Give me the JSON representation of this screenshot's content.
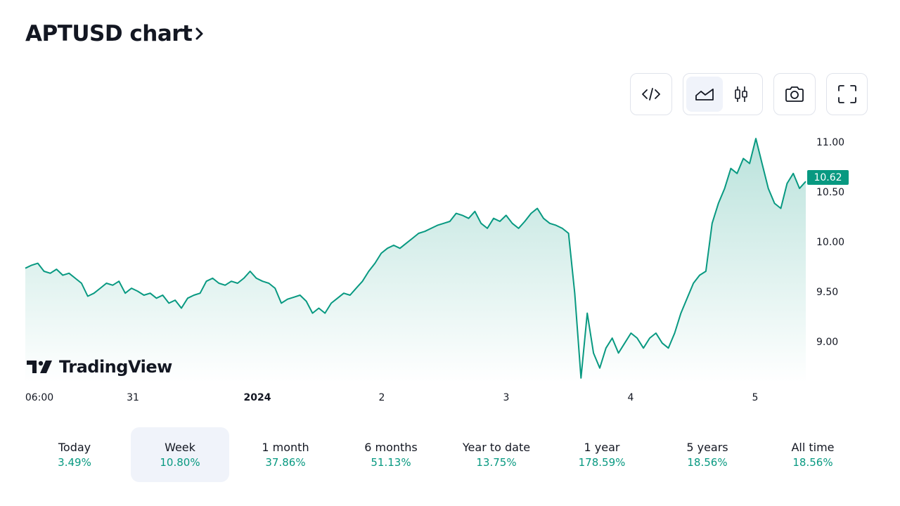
{
  "header": {
    "title": "APTUSD chart",
    "chevron_icon": "chevron-right-icon"
  },
  "toolbar": {
    "embed_icon": "code-icon",
    "area_icon": "area-chart-icon",
    "candle_icon": "candlestick-icon",
    "snapshot_icon": "camera-icon",
    "fullscreen_icon": "fullscreen-icon"
  },
  "colors": {
    "accent": "#089981",
    "fill_top": "#089981",
    "active_bg": "#f0f3fa",
    "text": "#131722"
  },
  "chart_data": {
    "type": "area",
    "title": "",
    "y_ticks": [
      "11.00",
      "10.50",
      "10.00",
      "9.50",
      "9.00"
    ],
    "x_ticks": [
      "06:00",
      "31",
      "2024",
      "2",
      "3",
      "4",
      "5"
    ],
    "ylim": [
      8.6,
      11.1
    ],
    "last_price": "10.62",
    "series": [
      {
        "values": [
          9.75,
          9.78,
          9.8,
          9.72,
          9.7,
          9.74,
          9.68,
          9.7,
          9.65,
          9.6,
          9.47,
          9.5,
          9.55,
          9.6,
          9.58,
          9.62,
          9.5,
          9.55,
          9.52,
          9.48,
          9.5,
          9.45,
          9.48,
          9.4,
          9.43,
          9.35,
          9.45,
          9.48,
          9.5,
          9.62,
          9.65,
          9.6,
          9.58,
          9.62,
          9.6,
          9.65,
          9.72,
          9.65,
          9.62,
          9.6,
          9.55,
          9.4,
          9.44,
          9.46,
          9.48,
          9.42,
          9.3,
          9.35,
          9.3,
          9.4,
          9.45,
          9.5,
          9.48,
          9.55,
          9.62,
          9.72,
          9.8,
          9.9,
          9.95,
          9.98,
          9.95,
          10.0,
          10.05,
          10.1,
          10.12,
          10.15,
          10.18,
          10.2,
          10.22,
          10.3,
          10.28,
          10.25,
          10.32,
          10.2,
          10.15,
          10.25,
          10.22,
          10.28,
          10.2,
          10.15,
          10.22,
          10.3,
          10.35,
          10.25,
          10.2,
          10.18,
          10.15,
          10.1,
          9.5,
          8.65,
          9.3,
          8.9,
          8.75,
          8.95,
          9.05,
          8.9,
          9.0,
          9.1,
          9.05,
          8.95,
          9.05,
          9.1,
          9.0,
          8.95,
          9.1,
          9.3,
          9.45,
          9.6,
          9.68,
          9.72,
          10.2,
          10.4,
          10.55,
          10.75,
          10.7,
          10.85,
          10.8,
          11.05,
          10.8,
          10.55,
          10.4,
          10.35,
          10.6,
          10.7,
          10.55,
          10.62
        ]
      }
    ]
  },
  "branding": {
    "name": "TradingView"
  },
  "periods": [
    {
      "label": "Today",
      "value": "3.49%"
    },
    {
      "label": "Week",
      "value": "10.80%"
    },
    {
      "label": "1 month",
      "value": "37.86%"
    },
    {
      "label": "6 months",
      "value": "51.13%"
    },
    {
      "label": "Year to date",
      "value": "13.75%"
    },
    {
      "label": "1 year",
      "value": "178.59%"
    },
    {
      "label": "5 years",
      "value": "18.56%"
    },
    {
      "label": "All time",
      "value": "18.56%"
    }
  ],
  "active_period": "Week"
}
